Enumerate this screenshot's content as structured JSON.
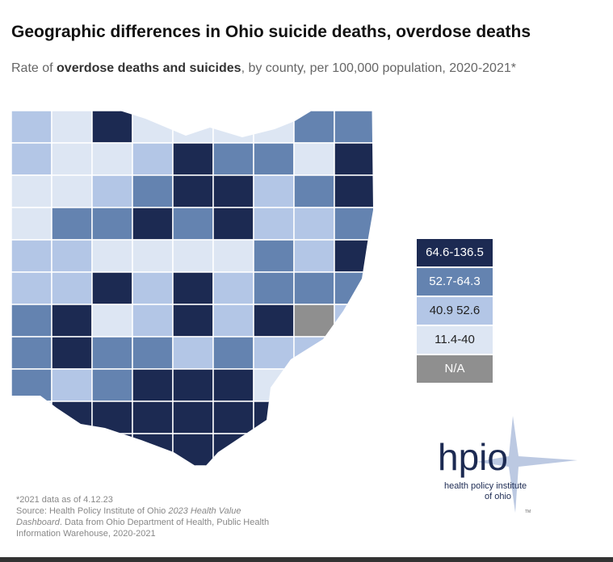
{
  "title": "Geographic differences in Ohio suicide deaths, overdose deaths",
  "subtitle": {
    "prefix": "Rate of ",
    "bold": "overdose deaths and suicides",
    "suffix": ", by county, per 100,000 population, 2020-2021*"
  },
  "legend": [
    {
      "label": "64.6-136.5",
      "color": "#1c2a52",
      "text_color": "#ffffff"
    },
    {
      "label": "52.7-64.3",
      "color": "#6483b0",
      "text_color": "#ffffff"
    },
    {
      "label": "40.9 52.6",
      "color": "#b3c6e6",
      "text_color": "#222222"
    },
    {
      "label": "11.4-40",
      "color": "#dde6f3",
      "text_color": "#222222"
    },
    {
      "label": "N/A",
      "color": "#8f8f8f",
      "text_color": "#ffffff"
    }
  ],
  "footer": {
    "note": "*2021 data as of 4.12.23",
    "source1": "Source: Health Policy Institute of Ohio ",
    "source_italic1": "2023 Health Value Dashboard",
    "source2": ". Data from Ohio Department of Health, Public Health Information Warehouse, 2020-2021"
  },
  "logo": {
    "text": "hpio",
    "tagline1": "health policy institute",
    "tagline2": "of ohio",
    "tm": "TM"
  }
}
